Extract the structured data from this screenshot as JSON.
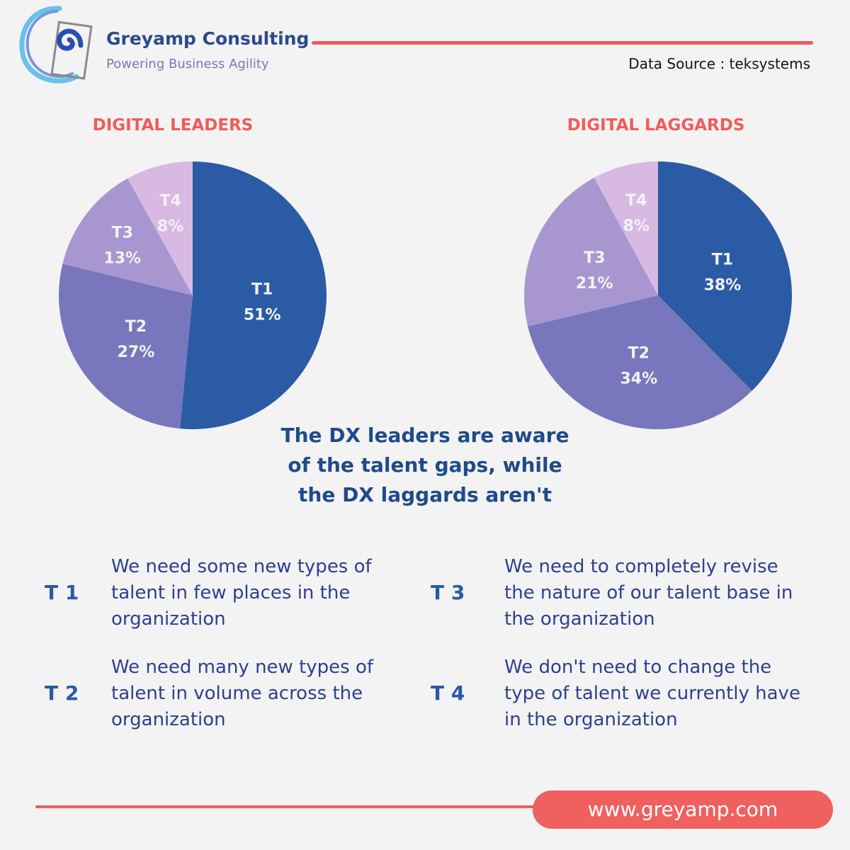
{
  "header": {
    "brand_name": "Greyamp Consulting",
    "tagline": "Powering Business Agility",
    "data_source": "Data Source : teksystems",
    "accent_color": "#ee5c5c",
    "brand_color": "#2b4a8c"
  },
  "chart_data": [
    {
      "type": "pie",
      "title": "DIGITAL LEADERS",
      "categories": [
        "T1",
        "T2",
        "T3",
        "T4"
      ],
      "values": [
        51,
        27,
        13,
        8
      ],
      "value_labels": [
        "51%",
        "27%",
        "13%",
        "8%"
      ],
      "colors": [
        "#2b5ba5",
        "#7876bd",
        "#a896d1",
        "#d8b9e2"
      ]
    },
    {
      "type": "pie",
      "title": "DIGITAL LAGGARDS",
      "categories": [
        "T1",
        "T2",
        "T3",
        "T4"
      ],
      "values": [
        38,
        34,
        21,
        8
      ],
      "value_labels": [
        "38%",
        "34%",
        "21%",
        "8%"
      ],
      "colors": [
        "#2b5ba5",
        "#7876bd",
        "#a896d1",
        "#d8b9e2"
      ]
    }
  ],
  "headline": {
    "lines": [
      "The DX leaders are aware",
      "of the talent gaps, while",
      "the DX laggards aren't"
    ]
  },
  "legend": [
    {
      "key": "T 1",
      "text": "We need some new types of talent in few places in the organization"
    },
    {
      "key": "T 2",
      "text": "We need many new types of talent in volume across the organization"
    },
    {
      "key": "T 3",
      "text": "We need to completely revise the nature of our talent base in the organization"
    },
    {
      "key": "T 4",
      "text": "We don't need to change the type of talent we currently have in the organization"
    }
  ],
  "footer": {
    "url": "www.greyamp.com"
  }
}
